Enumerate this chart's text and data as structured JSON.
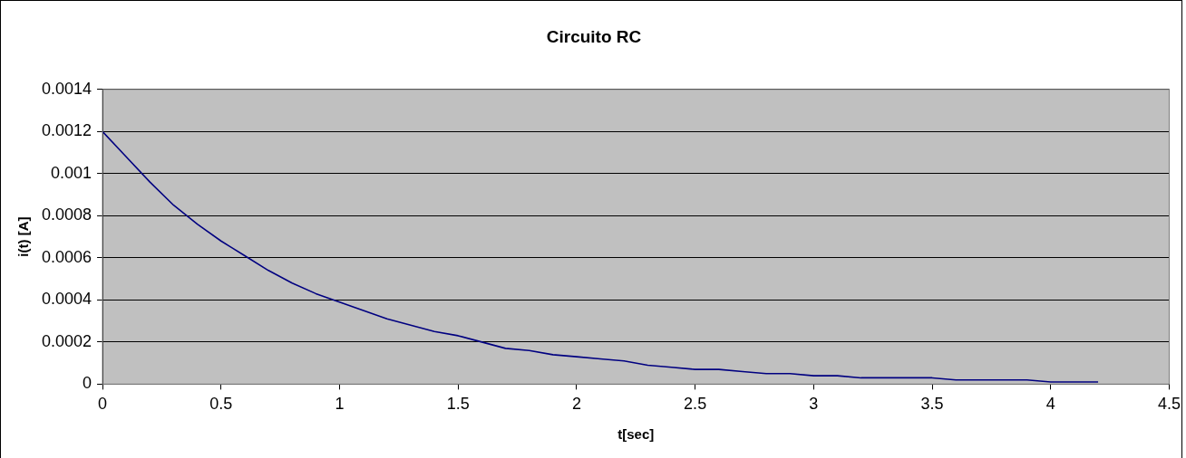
{
  "chart_data": {
    "type": "line",
    "title": "Circuito RC",
    "xlabel": "t[sec]",
    "ylabel": "i(t) [A]",
    "x": [
      0,
      0.1,
      0.2,
      0.3,
      0.4,
      0.5,
      0.6,
      0.7,
      0.8,
      0.9,
      1.0,
      1.1,
      1.2,
      1.3,
      1.4,
      1.5,
      1.6,
      1.7,
      1.8,
      1.9,
      2.0,
      2.1,
      2.2,
      2.3,
      2.4,
      2.5,
      2.6,
      2.7,
      2.8,
      2.9,
      3.0,
      3.1,
      3.2,
      3.3,
      3.4,
      3.5,
      3.6,
      3.7,
      3.8,
      3.9,
      4.0,
      4.1,
      4.2
    ],
    "series": [
      {
        "color": "#000080",
        "values": [
          0.0012,
          0.00108,
          0.00096,
          0.00085,
          0.00076,
          0.00068,
          0.00061,
          0.00054,
          0.00048,
          0.00043,
          0.00039,
          0.00035,
          0.00031,
          0.00028,
          0.00025,
          0.00023,
          0.0002,
          0.00017,
          0.00016,
          0.00014,
          0.00013,
          0.00012,
          0.00011,
          9e-05,
          8e-05,
          7e-05,
          7e-05,
          6e-05,
          5e-05,
          5e-05,
          4e-05,
          4e-05,
          3e-05,
          3e-05,
          3e-05,
          3e-05,
          2e-05,
          2e-05,
          2e-05,
          2e-05,
          1e-05,
          1e-05,
          1e-05
        ]
      }
    ],
    "xlim": [
      0,
      4.5
    ],
    "xticks": [
      0,
      0.5,
      1,
      1.5,
      2,
      2.5,
      3,
      3.5,
      4,
      4.5
    ],
    "ylim": [
      0,
      0.0014
    ],
    "yticks": [
      0,
      0.0002,
      0.0004,
      0.0006,
      0.0008,
      0.001,
      0.0012,
      0.0014
    ],
    "grid": "y",
    "legend": false,
    "marker": "none",
    "line_style": "solid"
  }
}
